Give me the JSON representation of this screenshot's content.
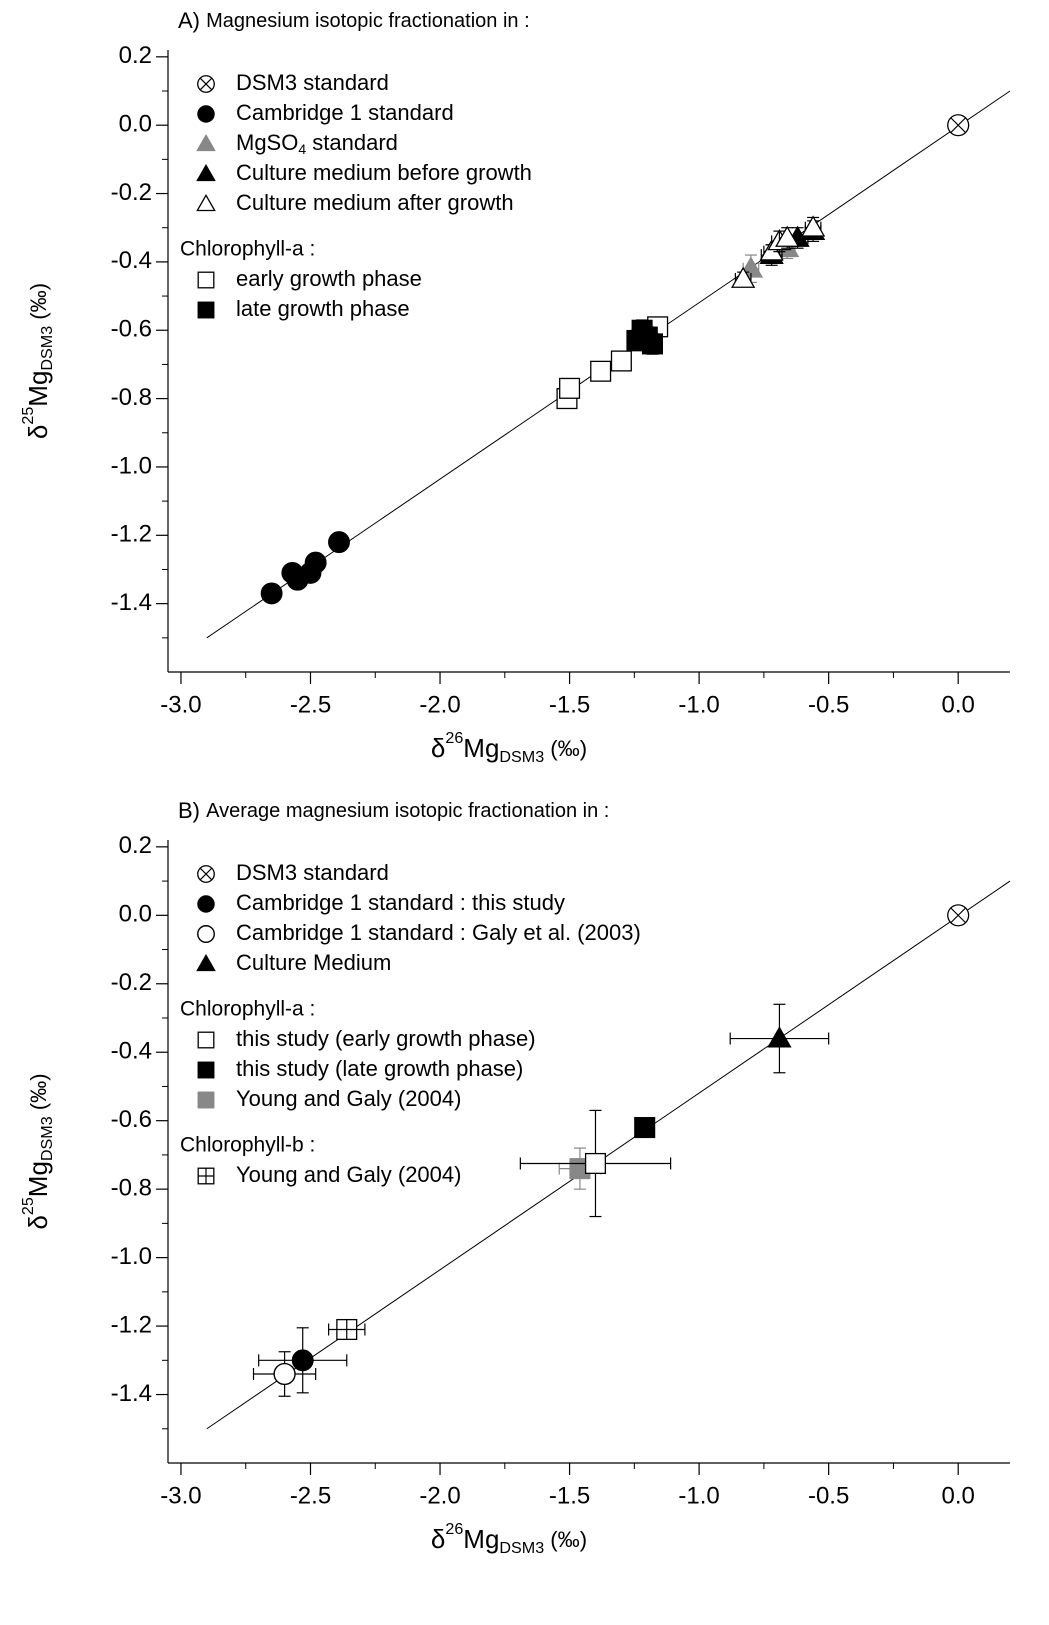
{
  "chart_data": [
    {
      "type": "scatter",
      "title": "A) Magnesium isotopic fractionation in :",
      "title_prefix": "A)",
      "title_text": "Magnesium isotopic fractionation in :",
      "xlabel": "δ26MgDSM3 (‰)",
      "ylabel": "δ25MgDSM3 (‰)",
      "xlim": [
        -3.05,
        0.2
      ],
      "ylim": [
        -1.6,
        0.22
      ],
      "xticks": [
        "-3.0",
        "-2.5",
        "-2.0",
        "-1.5",
        "-1.0",
        "-0.5",
        "0.0"
      ],
      "yticks": [
        "0.2",
        "0.0",
        "-0.2",
        "-0.4",
        "-0.6",
        "-0.8",
        "-1.0",
        "-1.2",
        "-1.4"
      ],
      "line": {
        "x": [
          -2.9,
          0.2
        ],
        "y": [
          -1.5,
          0.1
        ]
      },
      "legend_sections": [
        {
          "heading": "",
          "items": [
            {
              "symbol": "circle-x",
              "color": "#000000",
              "label": "DSM3 standard"
            },
            {
              "symbol": "circle-filled",
              "color": "#000000",
              "label": "Cambridge 1 standard"
            },
            {
              "symbol": "triangle-filled",
              "color": "#888888",
              "label": "MgSO",
              "sub": "4",
              "suffix": " standard"
            },
            {
              "symbol": "triangle-filled",
              "color": "#000000",
              "label": "Culture medium before growth"
            },
            {
              "symbol": "triangle-open",
              "color": "#000000",
              "label": "Culture medium after growth"
            }
          ]
        },
        {
          "heading": "Chlorophyll-a :",
          "items": [
            {
              "symbol": "square-open",
              "color": "#000000",
              "label": "early growth phase"
            },
            {
              "symbol": "square-filled",
              "color": "#000000",
              "label": "late growth phase"
            }
          ]
        }
      ],
      "series": [
        {
          "symbol": "circle-x",
          "color": "#000000",
          "points": [
            {
              "x": 0.0,
              "y": 0.0,
              "ex": 0.03,
              "ey": 0.02
            }
          ]
        },
        {
          "symbol": "circle-filled",
          "color": "#000000",
          "points": [
            {
              "x": -2.65,
              "y": -1.37,
              "ex": 0.03,
              "ey": 0.02
            },
            {
              "x": -2.57,
              "y": -1.31,
              "ex": 0.03,
              "ey": 0.02
            },
            {
              "x": -2.55,
              "y": -1.33,
              "ex": 0.03,
              "ey": 0.02
            },
            {
              "x": -2.5,
              "y": -1.31,
              "ex": 0.03,
              "ey": 0.02
            },
            {
              "x": -2.48,
              "y": -1.28,
              "ex": 0.03,
              "ey": 0.02
            },
            {
              "x": -2.39,
              "y": -1.22,
              "ex": 0.03,
              "ey": 0.02
            }
          ]
        },
        {
          "symbol": "triangle-filled",
          "color": "#888888",
          "points": [
            {
              "x": -0.8,
              "y": -0.42,
              "ex": 0.03,
              "ey": 0.04
            },
            {
              "x": -0.66,
              "y": -0.36,
              "ex": 0.03,
              "ey": 0.03
            }
          ]
        },
        {
          "symbol": "triangle-filled",
          "color": "#000000",
          "points": [
            {
              "x": -0.72,
              "y": -0.38,
              "ex": 0.04,
              "ey": 0.03
            },
            {
              "x": -0.62,
              "y": -0.33,
              "ex": 0.04,
              "ey": 0.03
            },
            {
              "x": -0.56,
              "y": -0.31,
              "ex": 0.03,
              "ey": 0.03
            }
          ]
        },
        {
          "symbol": "triangle-open",
          "color": "#000000",
          "points": [
            {
              "x": -0.83,
              "y": -0.45,
              "ex": 0.03,
              "ey": 0.02
            },
            {
              "x": -0.72,
              "y": -0.37,
              "ex": 0.03,
              "ey": 0.02
            },
            {
              "x": -0.69,
              "y": -0.34,
              "ex": 0.03,
              "ey": 0.03
            },
            {
              "x": -0.66,
              "y": -0.33,
              "ex": 0.03,
              "ey": 0.03
            },
            {
              "x": -0.56,
              "y": -0.3,
              "ex": 0.03,
              "ey": 0.03
            }
          ]
        },
        {
          "symbol": "square-open",
          "color": "#000000",
          "points": [
            {
              "x": -1.51,
              "y": -0.8,
              "ex": 0.03,
              "ey": 0.02
            },
            {
              "x": -1.5,
              "y": -0.77,
              "ex": 0.03,
              "ey": 0.02
            },
            {
              "x": -1.38,
              "y": -0.72,
              "ex": 0.03,
              "ey": 0.02
            },
            {
              "x": -1.3,
              "y": -0.69,
              "ex": 0.03,
              "ey": 0.02
            },
            {
              "x": -1.16,
              "y": -0.59,
              "ex": 0.03,
              "ey": 0.02
            }
          ]
        },
        {
          "symbol": "square-filled",
          "color": "#000000",
          "points": [
            {
              "x": -1.24,
              "y": -0.63,
              "ex": 0.03,
              "ey": 0.03
            },
            {
              "x": -1.22,
              "y": -0.6,
              "ex": 0.03,
              "ey": 0.03
            },
            {
              "x": -1.2,
              "y": -0.62,
              "ex": 0.03,
              "ey": 0.03
            },
            {
              "x": -1.18,
              "y": -0.64,
              "ex": 0.03,
              "ey": 0.03
            }
          ]
        }
      ]
    },
    {
      "type": "scatter",
      "title": "B) Average magnesium isotopic fractionation in :",
      "title_prefix": "B)",
      "title_text": "Average magnesium isotopic fractionation in :",
      "xlabel": "δ26MgDSM3 (‰)",
      "ylabel": "δ25MgDSM3 (‰)",
      "xlim": [
        -3.05,
        0.2
      ],
      "ylim": [
        -1.6,
        0.22
      ],
      "xticks": [
        "-3.0",
        "-2.5",
        "-2.0",
        "-1.5",
        "-1.0",
        "-0.5",
        "0.0"
      ],
      "yticks": [
        "0.2",
        "0.0",
        "-0.2",
        "-0.4",
        "-0.6",
        "-0.8",
        "-1.0",
        "-1.2",
        "-1.4"
      ],
      "line": {
        "x": [
          -2.9,
          0.2
        ],
        "y": [
          -1.5,
          0.1
        ]
      },
      "legend_sections": [
        {
          "heading": "",
          "items": [
            {
              "symbol": "circle-x",
              "color": "#000000",
              "label": "DSM3 standard"
            },
            {
              "symbol": "circle-filled",
              "color": "#000000",
              "label": "Cambridge 1 standard : this study"
            },
            {
              "symbol": "circle-open",
              "color": "#000000",
              "label": "Cambridge 1 standard : Galy et al. (2003)"
            },
            {
              "symbol": "triangle-filled",
              "color": "#000000",
              "label": "Culture Medium"
            }
          ]
        },
        {
          "heading": "Chlorophyll-a :",
          "items": [
            {
              "symbol": "square-open",
              "color": "#000000",
              "label": "this study (early growth phase)"
            },
            {
              "symbol": "square-filled",
              "color": "#000000",
              "label": "this study (late growth phase)"
            },
            {
              "symbol": "square-filled",
              "color": "#888888",
              "label": "Young and Galy (2004)"
            }
          ]
        },
        {
          "heading": "Chlorophyll-b :",
          "items": [
            {
              "symbol": "square-plus",
              "color": "#000000",
              "label": "Young and Galy (2004)"
            }
          ]
        }
      ],
      "series": [
        {
          "symbol": "circle-x",
          "color": "#000000",
          "points": [
            {
              "x": 0.0,
              "y": 0.0,
              "ex": 0.03,
              "ey": 0.02
            }
          ]
        },
        {
          "symbol": "circle-filled",
          "color": "#000000",
          "points": [
            {
              "x": -2.53,
              "y": -1.3,
              "ex": 0.17,
              "ey": 0.095
            }
          ]
        },
        {
          "symbol": "circle-open",
          "color": "#000000",
          "points": [
            {
              "x": -2.6,
              "y": -1.34,
              "ex": 0.12,
              "ey": 0.065
            }
          ]
        },
        {
          "symbol": "triangle-filled",
          "color": "#000000",
          "points": [
            {
              "x": -0.69,
              "y": -0.36,
              "ex": 0.19,
              "ey": 0.1
            }
          ]
        },
        {
          "symbol": "square-filled",
          "color": "#888888",
          "points": [
            {
              "x": -1.46,
              "y": -0.74,
              "ex": 0.08,
              "ey": 0.06
            }
          ]
        },
        {
          "symbol": "square-open",
          "color": "#000000",
          "points": [
            {
              "x": -1.4,
              "y": -0.725,
              "ex": 0.29,
              "ey": 0.155
            }
          ]
        },
        {
          "symbol": "square-filled",
          "color": "#000000",
          "points": [
            {
              "x": -1.21,
              "y": -0.62,
              "ex": 0.02,
              "ey": 0.02
            }
          ]
        },
        {
          "symbol": "square-plus",
          "color": "#000000",
          "points": [
            {
              "x": -2.36,
              "y": -1.21,
              "ex": 0.07,
              "ey": 0.02
            }
          ]
        }
      ]
    }
  ]
}
